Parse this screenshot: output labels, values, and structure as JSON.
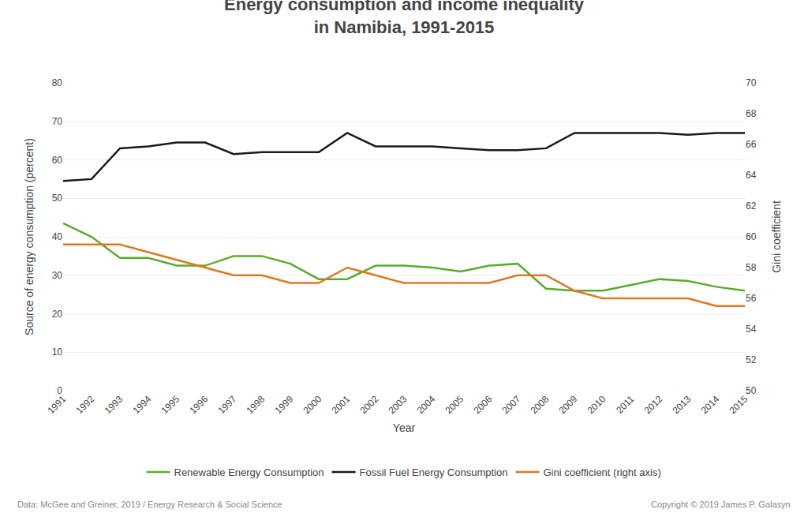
{
  "chart_data": {
    "type": "line",
    "title": "Energy consumption and income inequality",
    "subtitle": "in Namibia, 1991-2015",
    "xlabel": "Year",
    "ylabel": "Source of energy consumption (percent)",
    "y2label": "Gini coefficient",
    "x": [
      1991,
      1992,
      1993,
      1994,
      1995,
      1996,
      1997,
      1998,
      1999,
      2000,
      2001,
      2002,
      2003,
      2004,
      2005,
      2006,
      2007,
      2008,
      2009,
      2010,
      2011,
      2012,
      2013,
      2014,
      2015
    ],
    "series": [
      {
        "name": "Renewable Energy Consumption",
        "color": "#5aad2a",
        "values": [
          43.5,
          40.0,
          34.5,
          34.5,
          32.5,
          32.5,
          35.0,
          35.0,
          33.0,
          29.0,
          29.0,
          32.5,
          32.5,
          32.0,
          31.0,
          32.5,
          33.0,
          26.5,
          26.0,
          26.0,
          27.5,
          29.0,
          28.5,
          27.0,
          26.0
        ]
      },
      {
        "name": "Fossil Fuel Energy Consumption",
        "color": "#1a1a1a",
        "values": [
          54.5,
          55.0,
          63.0,
          63.5,
          64.5,
          64.5,
          61.5,
          62.0,
          62.0,
          62.0,
          67.0,
          63.5,
          63.5,
          63.5,
          63.0,
          62.5,
          62.5,
          63.0,
          67.0,
          67.0,
          67.0,
          67.0,
          66.5,
          67.0,
          67.0
        ]
      },
      {
        "name": "Gini coefficient (right axis)",
        "color": "#e07820",
        "axis": "y2",
        "values": [
          59.5,
          59.5,
          59.5,
          59.0,
          58.5,
          58.0,
          57.5,
          57.5,
          57.0,
          57.0,
          58.0,
          57.5,
          57.0,
          57.0,
          57.0,
          57.0,
          57.5,
          57.5,
          56.5,
          56.0,
          56.0,
          56.0,
          56.0,
          55.5,
          55.5
        ]
      }
    ],
    "xlim": [
      1991,
      2015
    ],
    "xticks": [
      1991,
      1992,
      1993,
      1994,
      1995,
      1996,
      1997,
      1998,
      1999,
      2000,
      2001,
      2002,
      2003,
      2004,
      2005,
      2006,
      2007,
      2008,
      2009,
      2010,
      2011,
      2012,
      2013,
      2014,
      2015
    ],
    "ylim": [
      0,
      80
    ],
    "yticks": [
      0,
      10,
      20,
      30,
      40,
      50,
      60,
      70,
      80
    ],
    "y2lim": [
      50,
      70
    ],
    "y2ticks": [
      50,
      52,
      54,
      56,
      58,
      60,
      62,
      64,
      66,
      68,
      70
    ],
    "grid": true,
    "legend": "bottom",
    "annotations": [
      "Data: McGee and Greiner, 2019 / Energy Research & Social Science",
      "Copyright © 2019 James P. Galasyn"
    ]
  }
}
